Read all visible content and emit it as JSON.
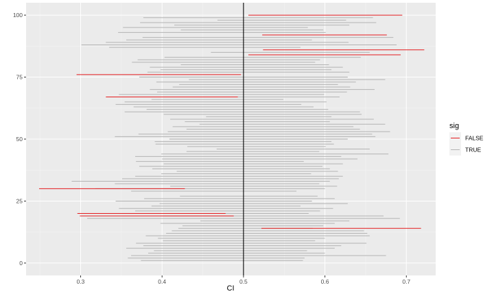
{
  "chart_data": {
    "type": "interval",
    "xlabel": "CI",
    "ylabel": "",
    "xlim": [
      0.233,
      0.736
    ],
    "ylim": [
      -5,
      105
    ],
    "x_ticks": [
      0.3,
      0.4,
      0.5,
      0.6,
      0.7
    ],
    "x_tick_labels": [
      "0.3",
      "0.4",
      "0.5",
      "0.6",
      "0.7"
    ],
    "y_ticks": [
      0,
      25,
      50,
      75,
      100
    ],
    "y_tick_labels": [
      "0",
      "25",
      "50",
      "75",
      "100"
    ],
    "reference_line": 0.5,
    "grid": true,
    "legend": {
      "title": "sig",
      "placement": "right",
      "entries": [
        {
          "label": "FALSE",
          "color": "#e41a1c"
        },
        {
          "label": "TRUE",
          "color": "#b3b3b3"
        }
      ]
    },
    "colors": {
      "FALSE": "#e41a1c",
      "TRUE": "#b3b3b3",
      "reference": "#000000",
      "panel": "#ebebeb"
    },
    "series": [
      {
        "sig": "TRUE",
        "intervals": [
          [
            1,
            0.374,
            0.573
          ],
          [
            2,
            0.358,
            0.575
          ],
          [
            3,
            0.362,
            0.675
          ],
          [
            4,
            0.383,
            0.6
          ],
          [
            5,
            0.39,
            0.578
          ],
          [
            6,
            0.356,
            0.612
          ],
          [
            7,
            0.377,
            0.62
          ],
          [
            8,
            0.368,
            0.651
          ],
          [
            9,
            0.401,
            0.588
          ],
          [
            10,
            0.395,
            0.6
          ],
          [
            11,
            0.38,
            0.655
          ],
          [
            12,
            0.405,
            0.652
          ],
          [
            13,
            0.412,
            0.648
          ],
          [
            14,
            0.42,
            0.585
          ],
          [
            15,
            0.425,
            0.598
          ],
          [
            16,
            0.398,
            0.612
          ],
          [
            17,
            0.447,
            0.63
          ],
          [
            18,
            0.308,
            0.692
          ],
          [
            19,
            0.398,
            0.672
          ],
          [
            20,
            0.395,
            0.58
          ],
          [
            21,
            0.367,
            0.594
          ],
          [
            22,
            0.347,
            0.61
          ],
          [
            23,
            0.387,
            0.57
          ],
          [
            24,
            0.397,
            0.628
          ],
          [
            25,
            0.343,
            0.584
          ],
          [
            26,
            0.378,
            0.612
          ],
          [
            27,
            0.422,
            0.591
          ],
          [
            29,
            0.362,
            0.565
          ],
          [
            30,
            0.318,
            0.6
          ],
          [
            31,
            0.41,
            0.615
          ],
          [
            32,
            0.342,
            0.593
          ],
          [
            33,
            0.289,
            0.606
          ],
          [
            34,
            0.351,
            0.617
          ],
          [
            35,
            0.367,
            0.622
          ],
          [
            36,
            0.399,
            0.583
          ],
          [
            37,
            0.418,
            0.616
          ],
          [
            38,
            0.388,
            0.606
          ],
          [
            39,
            0.372,
            0.597
          ],
          [
            40,
            0.402,
            0.622
          ],
          [
            41,
            0.368,
            0.574
          ],
          [
            42,
            0.4,
            0.64
          ],
          [
            43,
            0.367,
            0.62
          ],
          [
            44,
            0.399,
            0.678
          ],
          [
            45,
            0.43,
            0.593
          ],
          [
            46,
            0.467,
            0.655
          ],
          [
            47,
            0.431,
            0.601
          ],
          [
            48,
            0.392,
            0.611
          ],
          [
            49,
            0.391,
            0.608
          ],
          [
            50,
            0.409,
            0.628
          ],
          [
            51,
            0.342,
            0.662
          ],
          [
            52,
            0.371,
            0.658
          ],
          [
            53,
            0.407,
            0.68
          ],
          [
            54,
            0.43,
            0.643
          ],
          [
            55,
            0.413,
            0.635
          ],
          [
            56,
            0.446,
            0.674
          ],
          [
            57,
            0.428,
            0.606
          ],
          [
            58,
            0.41,
            0.66
          ],
          [
            59,
            0.454,
            0.608
          ],
          [
            60,
            0.402,
            0.645
          ],
          [
            61,
            0.354,
            0.643
          ],
          [
            62,
            0.381,
            0.604
          ],
          [
            63,
            0.365,
            0.586
          ],
          [
            64,
            0.343,
            0.571
          ],
          [
            65,
            0.354,
            0.602
          ],
          [
            66,
            0.387,
            0.549
          ],
          [
            67,
            0.364,
            0.618
          ],
          [
            68,
            0.347,
            0.599
          ],
          [
            69,
            0.394,
            0.627
          ],
          [
            70,
            0.385,
            0.661
          ],
          [
            71,
            0.413,
            0.631
          ],
          [
            72,
            0.421,
            0.616
          ],
          [
            73,
            0.393,
            0.638
          ],
          [
            74,
            0.433,
            0.674
          ],
          [
            75,
            0.372,
            0.628
          ],
          [
            77,
            0.382,
            0.63
          ],
          [
            78,
            0.398,
            0.608
          ],
          [
            79,
            0.385,
            0.622
          ],
          [
            80,
            0.423,
            0.605
          ],
          [
            81,
            0.363,
            0.588
          ],
          [
            82,
            0.37,
            0.594
          ],
          [
            83,
            0.403,
            0.644
          ],
          [
            85,
            0.46,
            0.655
          ],
          [
            87,
            0.335,
            0.57
          ],
          [
            88,
            0.301,
            0.688
          ],
          [
            89,
            0.331,
            0.629
          ],
          [
            90,
            0.356,
            0.584
          ],
          [
            91,
            0.376,
            0.684
          ],
          [
            93,
            0.346,
            0.601
          ],
          [
            94,
            0.423,
            0.598
          ],
          [
            95,
            0.352,
            0.579
          ],
          [
            96,
            0.415,
            0.63
          ],
          [
            97,
            0.373,
            0.663
          ],
          [
            98,
            0.468,
            0.626
          ],
          [
            99,
            0.377,
            0.659
          ]
        ]
      },
      {
        "sig": "FALSE",
        "intervals": [
          [
            14,
            0.522,
            0.718
          ],
          [
            19,
            0.299,
            0.488
          ],
          [
            20,
            0.296,
            0.478
          ],
          [
            30,
            0.249,
            0.428
          ],
          [
            67,
            0.331,
            0.493
          ],
          [
            76,
            0.295,
            0.497
          ],
          [
            84,
            0.506,
            0.693
          ],
          [
            86,
            0.524,
            0.722
          ],
          [
            92,
            0.523,
            0.676
          ],
          [
            100,
            0.506,
            0.695
          ]
        ]
      }
    ]
  }
}
